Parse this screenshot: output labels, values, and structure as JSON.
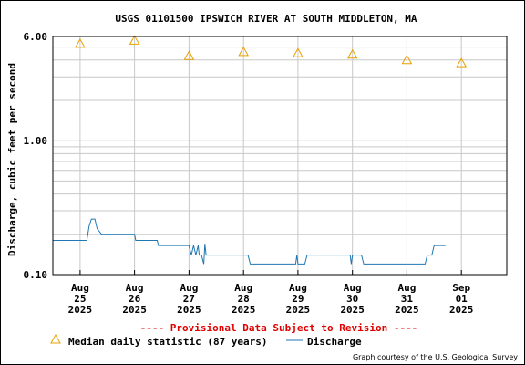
{
  "chart_data": {
    "type": "line",
    "title": "USGS 01101500 IPSWICH RIVER AT SOUTH MIDDLETON, MA",
    "ylabel": "Discharge, cubic feet per second",
    "xlabel": "",
    "y_scale": "log",
    "ylim": [
      0.1,
      6.0
    ],
    "y_tick_labels": [
      {
        "value": 6.0,
        "label": "6.00"
      },
      {
        "value": 1.0,
        "label": "1.00"
      },
      {
        "value": 0.1,
        "label": "0.10"
      }
    ],
    "x_ticks": [
      {
        "date": "2025-08-25",
        "label": [
          "Aug",
          "25",
          "2025"
        ]
      },
      {
        "date": "2025-08-26",
        "label": [
          "Aug",
          "26",
          "2025"
        ]
      },
      {
        "date": "2025-08-27",
        "label": [
          "Aug",
          "27",
          "2025"
        ]
      },
      {
        "date": "2025-08-28",
        "label": [
          "Aug",
          "28",
          "2025"
        ]
      },
      {
        "date": "2025-08-29",
        "label": [
          "Aug",
          "29",
          "2025"
        ]
      },
      {
        "date": "2025-08-30",
        "label": [
          "Aug",
          "30",
          "2025"
        ]
      },
      {
        "date": "2025-08-31",
        "label": [
          "Aug",
          "31",
          "2025"
        ]
      },
      {
        "date": "2025-09-01",
        "label": [
          "Sep",
          "01",
          "2025"
        ]
      }
    ],
    "grid": true,
    "series": [
      {
        "name": "Median daily statistic (87 years)",
        "marker": "triangle",
        "color": "#E8A000",
        "points": [
          {
            "x": "2025-08-25",
            "y": 5.3
          },
          {
            "x": "2025-08-26",
            "y": 5.6
          },
          {
            "x": "2025-08-27",
            "y": 4.3
          },
          {
            "x": "2025-08-28",
            "y": 4.6
          },
          {
            "x": "2025-08-29",
            "y": 4.5
          },
          {
            "x": "2025-08-30",
            "y": 4.4
          },
          {
            "x": "2025-08-31",
            "y": 4.0
          },
          {
            "x": "2025-09-01",
            "y": 3.8
          }
        ]
      },
      {
        "name": "Discharge",
        "marker": "line",
        "color": "#1F77B4",
        "points": [
          {
            "x": "2025-08-24 12:00",
            "y": 0.18
          },
          {
            "x": "2025-08-25 03:00",
            "y": 0.18
          },
          {
            "x": "2025-08-25 04:00",
            "y": 0.23
          },
          {
            "x": "2025-08-25 05:00",
            "y": 0.26
          },
          {
            "x": "2025-08-25 06:30",
            "y": 0.26
          },
          {
            "x": "2025-08-25 07:30",
            "y": 0.22
          },
          {
            "x": "2025-08-25 09:30",
            "y": 0.2
          },
          {
            "x": "2025-08-26 00:00",
            "y": 0.2
          },
          {
            "x": "2025-08-26 00:30",
            "y": 0.18
          },
          {
            "x": "2025-08-26 10:00",
            "y": 0.18
          },
          {
            "x": "2025-08-26 10:30",
            "y": 0.165
          },
          {
            "x": "2025-08-27 00:00",
            "y": 0.165
          },
          {
            "x": "2025-08-27 01:00",
            "y": 0.14
          },
          {
            "x": "2025-08-27 02:00",
            "y": 0.165
          },
          {
            "x": "2025-08-27 03:00",
            "y": 0.14
          },
          {
            "x": "2025-08-27 04:00",
            "y": 0.165
          },
          {
            "x": "2025-08-27 04:30",
            "y": 0.14
          },
          {
            "x": "2025-08-27 05:30",
            "y": 0.14
          },
          {
            "x": "2025-08-27 06:30",
            "y": 0.12
          },
          {
            "x": "2025-08-27 07:00",
            "y": 0.17
          },
          {
            "x": "2025-08-27 07:30",
            "y": 0.14
          },
          {
            "x": "2025-08-28 02:00",
            "y": 0.14
          },
          {
            "x": "2025-08-28 03:00",
            "y": 0.12
          },
          {
            "x": "2025-08-28 23:00",
            "y": 0.12
          },
          {
            "x": "2025-08-28 23:30",
            "y": 0.14
          },
          {
            "x": "2025-08-29 00:00",
            "y": 0.12
          },
          {
            "x": "2025-08-29 03:00",
            "y": 0.12
          },
          {
            "x": "2025-08-29 04:00",
            "y": 0.14
          },
          {
            "x": "2025-08-29 23:00",
            "y": 0.14
          },
          {
            "x": "2025-08-29 23:30",
            "y": 0.12
          },
          {
            "x": "2025-08-30 00:00",
            "y": 0.14
          },
          {
            "x": "2025-08-30 04:00",
            "y": 0.14
          },
          {
            "x": "2025-08-30 05:00",
            "y": 0.12
          },
          {
            "x": "2025-08-31 08:00",
            "y": 0.12
          },
          {
            "x": "2025-08-31 09:00",
            "y": 0.14
          },
          {
            "x": "2025-08-31 11:00",
            "y": 0.14
          },
          {
            "x": "2025-08-31 12:00",
            "y": 0.165
          },
          {
            "x": "2025-08-31 17:00",
            "y": 0.165
          }
        ]
      }
    ],
    "legend": {
      "position": "bottom",
      "provisional_note": "---- Provisional Data Subject to Revision ----",
      "median_label": "Median daily statistic (87 years)",
      "discharge_label": "Discharge"
    },
    "credit": "Graph courtesy of the U.S. Geological Survey"
  }
}
